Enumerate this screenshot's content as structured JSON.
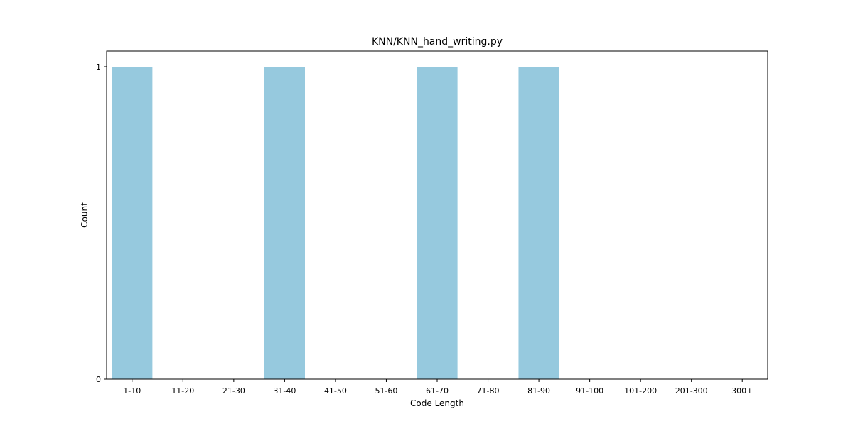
{
  "chart_data": {
    "type": "bar",
    "title": "KNN/KNN_hand_writing.py",
    "xlabel": "Code Length",
    "ylabel": "Count",
    "categories": [
      "1-10",
      "11-20",
      "21-30",
      "31-40",
      "41-50",
      "51-60",
      "61-70",
      "71-80",
      "81-90",
      "91-100",
      "101-200",
      "201-300",
      "300+"
    ],
    "values": [
      1,
      0,
      0,
      1,
      0,
      0,
      1,
      0,
      1,
      0,
      0,
      0,
      0
    ],
    "ylim": [
      0,
      1.05
    ],
    "yticks": [
      0,
      1
    ],
    "grid": false,
    "legend": "none",
    "colors": {
      "bar": "#96c9de",
      "axis": "#000000"
    }
  }
}
